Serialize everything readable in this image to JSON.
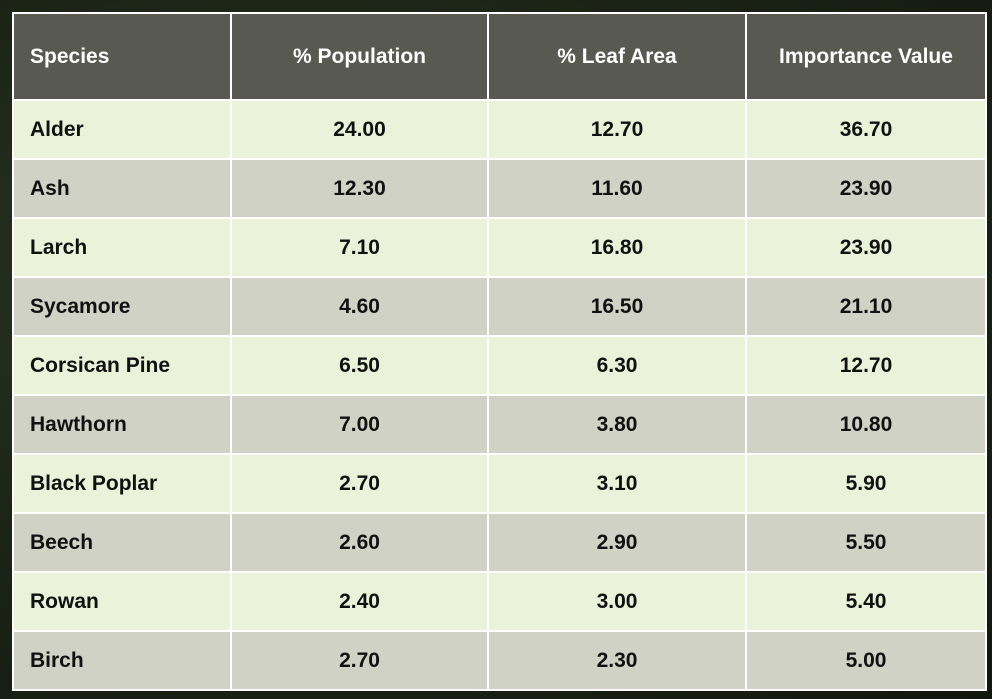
{
  "table": {
    "header": [
      "Species",
      "% Population",
      "% Leaf Area",
      "Importance Value"
    ],
    "rows": [
      [
        "Alder",
        "24.00",
        "12.70",
        "36.70"
      ],
      [
        "Ash",
        "12.30",
        "11.60",
        "23.90"
      ],
      [
        "Larch",
        "7.10",
        "16.80",
        "23.90"
      ],
      [
        "Sycamore",
        "4.60",
        "16.50",
        "21.10"
      ],
      [
        "Corsican Pine",
        "6.50",
        "6.30",
        "12.70"
      ],
      [
        "Hawthorn",
        "7.00",
        "3.80",
        "10.80"
      ],
      [
        "Black Poplar",
        "2.70",
        "3.10",
        "5.90"
      ],
      [
        "Beech",
        "2.60",
        "2.90",
        "5.50"
      ],
      [
        "Rowan",
        "2.40",
        "3.00",
        "5.40"
      ],
      [
        "Birch",
        "2.70",
        "2.30",
        "5.00"
      ]
    ]
  }
}
